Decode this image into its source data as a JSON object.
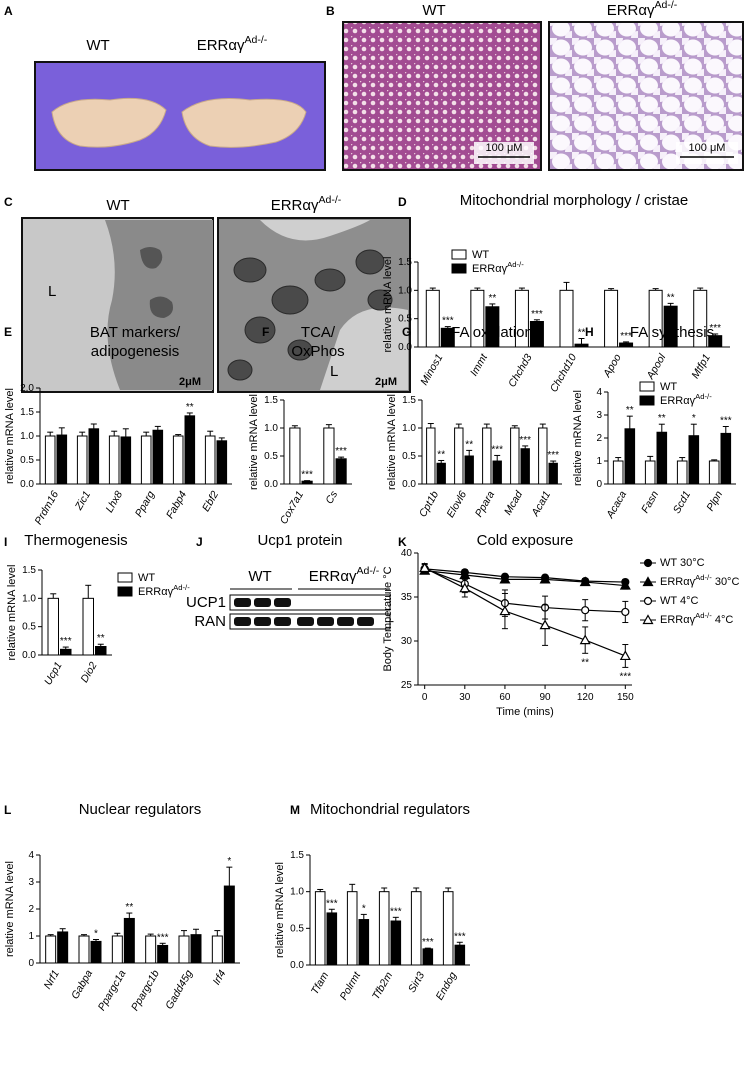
{
  "figure": {
    "A": {
      "panel": "A",
      "labels": [
        "WT",
        "ERRαγAd-/-"
      ]
    },
    "B": {
      "panel": "B",
      "labels": [
        "WT",
        "ERRαγAd-/-"
      ],
      "scale": [
        "100 μM",
        "100 μM"
      ]
    },
    "C": {
      "panel": "C",
      "labels": [
        "WT",
        "ERRαγAd-/-"
      ],
      "lumen": [
        "L",
        "L"
      ],
      "scale": [
        "2μM",
        "2μM"
      ]
    },
    "J": {
      "panel": "J",
      "title": "Ucp1 protein",
      "groups": [
        "WT",
        "ERRαγAd-/-"
      ],
      "bands": [
        "UCP1",
        "RAN"
      ]
    }
  },
  "chart_data": [
    {
      "panel": "D",
      "type": "bar",
      "title": "Mitochondrial morphology / cristae",
      "y_label": "relative mRNA level",
      "categories": [
        "Minos1",
        "Immt",
        "Chchd3",
        "Chchd10",
        "Apoo",
        "Apool",
        "Mtfp1"
      ],
      "series": [
        {
          "name": "WT",
          "color": "#ffffff",
          "values": [
            1,
            1,
            1,
            1,
            1,
            1,
            1
          ],
          "errors": [
            0.04,
            0.04,
            0.04,
            0.14,
            0.03,
            0.03,
            0.04
          ]
        },
        {
          "name": "ERRαγAd-/-",
          "color": "#000000",
          "values": [
            0.33,
            0.71,
            0.45,
            0.05,
            0.07,
            0.72,
            0.2
          ],
          "errors": [
            0.03,
            0.05,
            0.03,
            0.1,
            0.02,
            0.05,
            0.03
          ],
          "sig": [
            "***",
            "**",
            "***",
            "**",
            "***",
            "**",
            "***"
          ]
        }
      ],
      "ylim": [
        0,
        1.5
      ],
      "yticks": [
        {
          "value": 0,
          "label": "0.0"
        },
        {
          "value": 0.5,
          "label": "0.5"
        },
        {
          "value": 1,
          "label": "1.0"
        },
        {
          "value": 1.5,
          "label": "1.5"
        }
      ],
      "legend": true
    },
    {
      "panel": "E",
      "type": "bar",
      "title": "BAT markers/\nadipogenesis",
      "y_label": "relative mRNA level",
      "categories": [
        "Prdm16",
        "Zic1",
        "Lhx8",
        "Pparg",
        "Fabp4",
        "Ebf2"
      ],
      "series": [
        {
          "name": "WT",
          "color": "#ffffff",
          "values": [
            1,
            1,
            1,
            1,
            1,
            1
          ],
          "errors": [
            0.08,
            0.08,
            0.1,
            0.08,
            0.03,
            0.1
          ]
        },
        {
          "name": "ERRαγAd-/-",
          "color": "#000000",
          "values": [
            1.02,
            1.15,
            0.98,
            1.12,
            1.42,
            0.9
          ],
          "errors": [
            0.15,
            0.1,
            0.17,
            0.08,
            0.06,
            0.06
          ],
          "sig": [
            null,
            null,
            null,
            null,
            "**",
            null
          ]
        }
      ],
      "ylim": [
        0,
        2
      ],
      "yticks": [
        {
          "value": 0,
          "label": "0.0"
        },
        {
          "value": 0.5,
          "label": "0.5"
        },
        {
          "value": 1,
          "label": "1.0"
        },
        {
          "value": 1.5,
          "label": "1.5"
        },
        {
          "value": 2,
          "label": "2.0"
        }
      ],
      "legend": false
    },
    {
      "panel": "F",
      "type": "bar",
      "title": "TCA/\nOxPhos",
      "y_label": "relative mRNA level",
      "categories": [
        "Cox7a1",
        "Cs"
      ],
      "series": [
        {
          "name": "WT",
          "color": "#ffffff",
          "values": [
            1,
            1
          ],
          "errors": [
            0.04,
            0.06
          ]
        },
        {
          "name": "ERRαγAd-/-",
          "color": "#000000",
          "values": [
            0.05,
            0.45
          ],
          "errors": [
            0.01,
            0.03
          ],
          "sig": [
            "***",
            "***"
          ]
        }
      ],
      "ylim": [
        0,
        1.5
      ],
      "yticks": [
        {
          "value": 0,
          "label": "0.0"
        },
        {
          "value": 0.5,
          "label": "0.5"
        },
        {
          "value": 1,
          "label": "1.0"
        },
        {
          "value": 1.5,
          "label": "1.5"
        }
      ],
      "legend": false
    },
    {
      "panel": "G",
      "type": "bar",
      "title": "FA oxidation",
      "y_label": "relative mRNA level",
      "categories": [
        "Cpt1b",
        "Elovl6",
        "Ppara",
        "Mcad",
        "Acat1"
      ],
      "series": [
        {
          "name": "WT",
          "color": "#ffffff",
          "values": [
            1,
            1,
            1,
            1,
            1
          ],
          "errors": [
            0.08,
            0.07,
            0.07,
            0.04,
            0.07
          ]
        },
        {
          "name": "ERRαγAd-/-",
          "color": "#000000",
          "values": [
            0.37,
            0.5,
            0.41,
            0.63,
            0.37
          ],
          "errors": [
            0.05,
            0.1,
            0.1,
            0.05,
            0.04
          ],
          "sig": [
            "**",
            "**",
            "***",
            "***",
            "***"
          ]
        }
      ],
      "ylim": [
        0,
        1.5
      ],
      "yticks": [
        {
          "value": 0,
          "label": "0.0"
        },
        {
          "value": 0.5,
          "label": "0.5"
        },
        {
          "value": 1,
          "label": "1.0"
        },
        {
          "value": 1.5,
          "label": "1.5"
        }
      ],
      "legend": false
    },
    {
      "panel": "H",
      "type": "bar",
      "title": "FA synthesis",
      "y_label": "relative mRNA level",
      "categories": [
        "Acaca",
        "Fasn",
        "Scd1",
        "Plpn"
      ],
      "series": [
        {
          "name": "WT",
          "color": "#ffffff",
          "values": [
            1,
            1,
            1,
            1
          ],
          "errors": [
            0.15,
            0.2,
            0.15,
            0.05
          ]
        },
        {
          "name": "ERRαγAd-/-",
          "color": "#000000",
          "values": [
            2.4,
            2.25,
            2.1,
            2.2
          ],
          "errors": [
            0.55,
            0.35,
            0.5,
            0.3
          ],
          "sig": [
            "**",
            "**",
            "*",
            "***"
          ]
        }
      ],
      "ylim": [
        0,
        4
      ],
      "yticks": [
        0,
        1,
        2,
        3,
        4
      ],
      "legend": true
    },
    {
      "panel": "I",
      "type": "bar",
      "title": "Thermogenesis",
      "y_label": "relative mRNA level",
      "categories": [
        "Ucp1",
        "Dio2"
      ],
      "series": [
        {
          "name": "WT",
          "color": "#ffffff",
          "values": [
            1,
            1
          ],
          "errors": [
            0.08,
            0.23
          ]
        },
        {
          "name": "ERRαγAd-/-",
          "color": "#000000",
          "values": [
            0.1,
            0.15
          ],
          "errors": [
            0.04,
            0.04
          ],
          "sig": [
            "***",
            "**"
          ]
        }
      ],
      "ylim": [
        0,
        1.5
      ],
      "yticks": [
        {
          "value": 0,
          "label": "0.0"
        },
        {
          "value": 0.5,
          "label": "0.5"
        },
        {
          "value": 1,
          "label": "1.0"
        },
        {
          "value": 1.5,
          "label": "1.5"
        }
      ],
      "legend": true
    },
    {
      "panel": "K",
      "type": "line",
      "title": "Cold exposure",
      "x_label": "Time  (mins)",
      "y_label": "Body Temperature °C",
      "x": [
        0,
        30,
        60,
        90,
        120,
        150
      ],
      "series": [
        {
          "name": "WT 30°C",
          "color": "#000000",
          "marker": "circle",
          "filled": true,
          "values": [
            38.2,
            37.8,
            37.3,
            37.2,
            36.8,
            36.7
          ],
          "errors": [
            0.3,
            0.3,
            0.3,
            0.3,
            0.3,
            0.3
          ]
        },
        {
          "name": "ERRαγAd-/- 30°C",
          "color": "#000000",
          "marker": "triangle",
          "filled": true,
          "values": [
            38,
            37.5,
            37,
            37,
            36.7,
            36.3
          ],
          "errors": [
            0.3,
            0.3,
            0.3,
            0.3,
            0.3,
            0.4
          ]
        },
        {
          "name": "WT 4°C",
          "color": "#000000",
          "marker": "circle",
          "filled": false,
          "values": [
            38.2,
            36.5,
            34.3,
            33.8,
            33.5,
            33.3
          ],
          "errors": [
            0.5,
            1,
            1.5,
            1.3,
            1.2,
            1.2
          ]
        },
        {
          "name": "ERRαγAd-/- 4°C",
          "color": "#000000",
          "marker": "triangle",
          "filled": false,
          "values": [
            38.3,
            36,
            33.4,
            31.8,
            30.1,
            28.3
          ],
          "errors": [
            0.5,
            1,
            2,
            2.3,
            1.5,
            1.3
          ]
        }
      ],
      "annotations": [
        {
          "x": 120,
          "text": "**"
        },
        {
          "x": 150,
          "text": "***"
        }
      ],
      "xlim": [
        -5,
        155
      ],
      "xticks": [
        0,
        30,
        60,
        90,
        120,
        150
      ],
      "ylim": [
        25,
        40
      ],
      "yticks": [
        25,
        30,
        35,
        40
      ],
      "legend": true
    },
    {
      "panel": "L",
      "type": "bar",
      "title": "Nuclear regulators",
      "y_label": "relative mRNA level",
      "categories": [
        "Nrf1",
        "Gabpa",
        "Ppargc1a",
        "Ppargc1b",
        "Gadd45g",
        "Irf4"
      ],
      "series": [
        {
          "name": "WT",
          "color": "#ffffff",
          "values": [
            1,
            1,
            1,
            1,
            1,
            1
          ],
          "errors": [
            0.05,
            0.05,
            0.1,
            0.07,
            0.2,
            0.2
          ]
        },
        {
          "name": "ERRαγAd-/-",
          "color": "#000000",
          "values": [
            1.15,
            0.8,
            1.65,
            0.65,
            1.05,
            2.85
          ],
          "errors": [
            0.12,
            0.07,
            0.2,
            0.08,
            0.2,
            0.7
          ],
          "sig": [
            null,
            "*",
            "**",
            "***",
            null,
            "*"
          ]
        }
      ],
      "ylim": [
        0,
        4
      ],
      "yticks": [
        0,
        1,
        2,
        3,
        4
      ],
      "legend": false
    },
    {
      "panel": "M",
      "type": "bar",
      "title": "Mitochondrial regulators",
      "y_label": "relative mRNA level",
      "categories": [
        "Tfam",
        "Polrmt",
        "Tfb2m",
        "Sirt3",
        "Endog"
      ],
      "series": [
        {
          "name": "WT",
          "color": "#ffffff",
          "values": [
            1,
            1,
            1,
            1,
            1
          ],
          "errors": [
            0.03,
            0.1,
            0.05,
            0.05,
            0.05
          ]
        },
        {
          "name": "ERRαγAd-/-",
          "color": "#000000",
          "values": [
            0.71,
            0.62,
            0.6,
            0.22,
            0.27
          ],
          "errors": [
            0.05,
            0.07,
            0.05,
            0.01,
            0.04
          ],
          "sig": [
            "***",
            "*",
            "***",
            "***",
            "***"
          ]
        }
      ],
      "ylim": [
        0,
        1.5
      ],
      "yticks": [
        {
          "value": 0,
          "label": "0.0"
        },
        {
          "value": 0.5,
          "label": "0.5"
        },
        {
          "value": 1,
          "label": "1.0"
        },
        {
          "value": 1.5,
          "label": "1.5"
        }
      ],
      "legend": false
    }
  ]
}
